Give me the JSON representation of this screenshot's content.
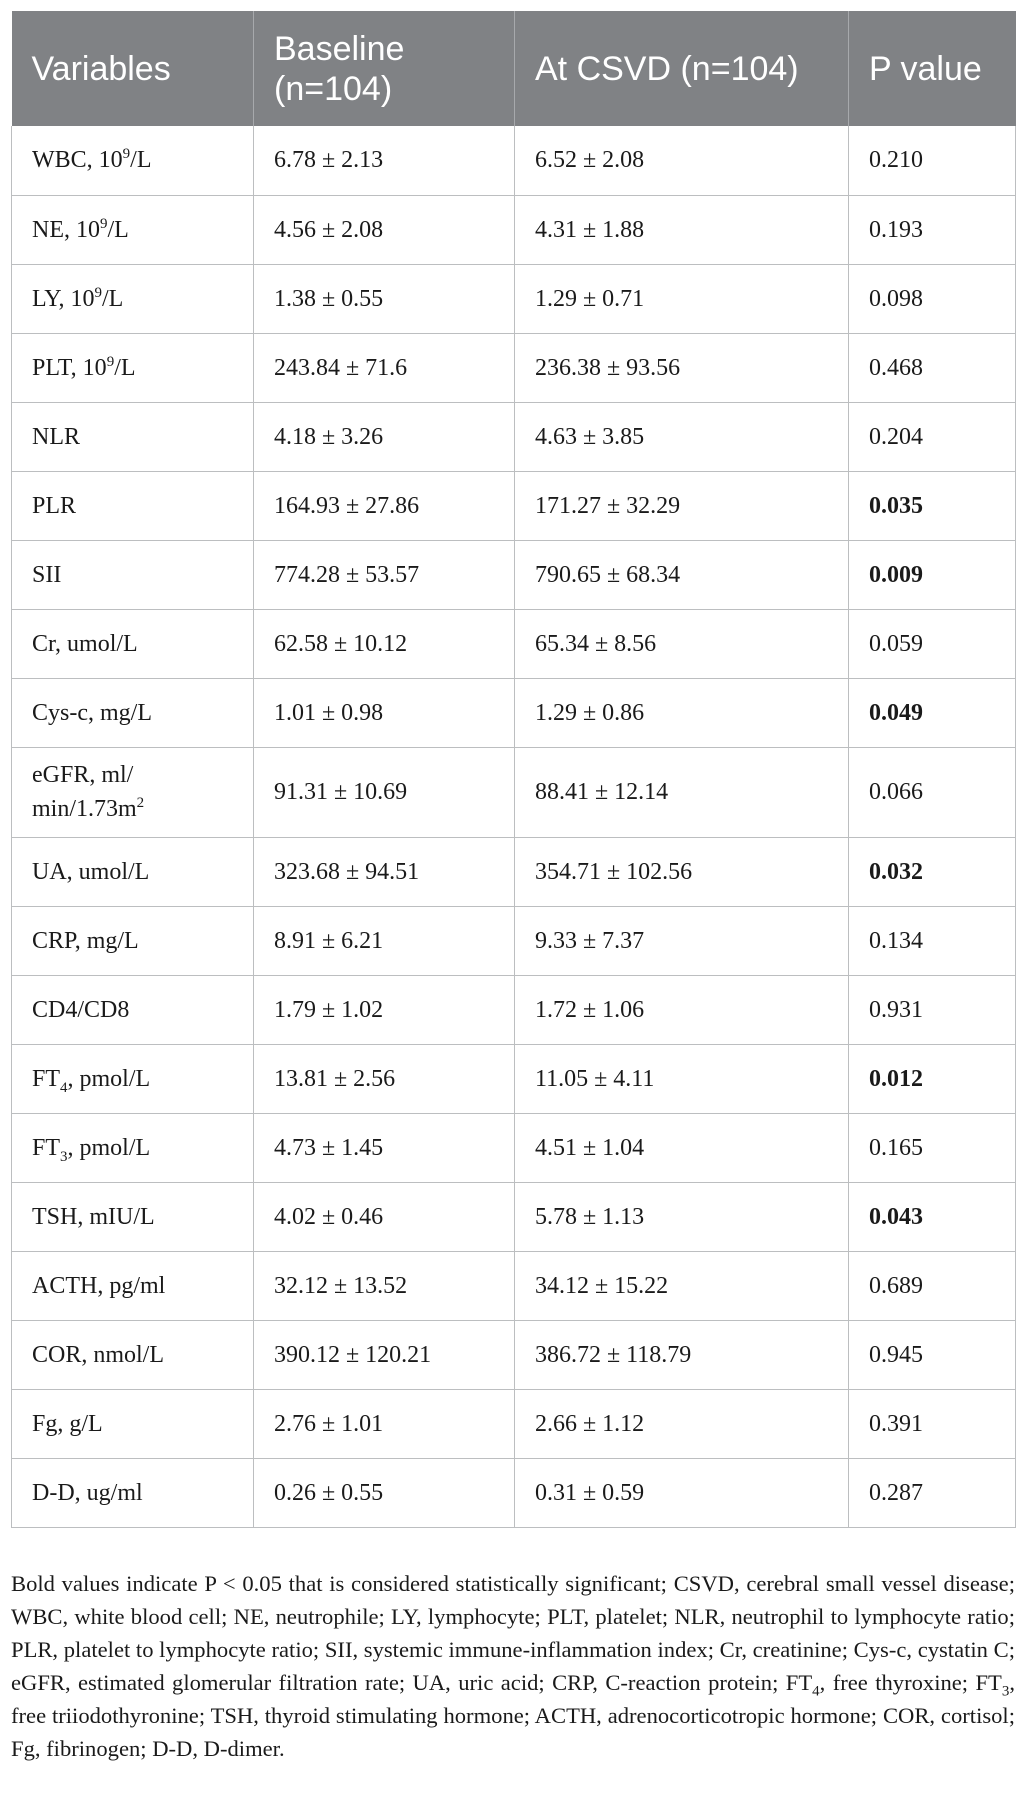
{
  "table": {
    "headers": {
      "variables": "Variables",
      "baseline_line1": "Baseline",
      "baseline_line2": "(n=104)",
      "at_csvd": "At CSVD (n=104)",
      "p_value": "P value"
    },
    "rows": [
      {
        "var": "WBC, 10",
        "sup": "9",
        "rest": "/L",
        "baseline": "6.78 ± 2.13",
        "csvd": "6.52 ± 2.08",
        "p": "0.210",
        "significant": false
      },
      {
        "var": "NE, 10",
        "sup": "9",
        "rest": "/L",
        "baseline": "4.56 ± 2.08",
        "csvd": "4.31 ± 1.88",
        "p": "0.193",
        "significant": false
      },
      {
        "var": "LY, 10",
        "sup": "9",
        "rest": "/L",
        "baseline": "1.38 ± 0.55",
        "csvd": "1.29 ± 0.71",
        "p": "0.098",
        "significant": false
      },
      {
        "var": "PLT, 10",
        "sup": "9",
        "rest": "/L",
        "baseline": "243.84 ± 71.6",
        "csvd": "236.38 ± 93.56",
        "p": "0.468",
        "significant": false
      },
      {
        "var": "NLR",
        "baseline": "4.18 ± 3.26",
        "csvd": "4.63 ± 3.85",
        "p": "0.204",
        "significant": false
      },
      {
        "var": "PLR",
        "baseline": "164.93 ± 27.86",
        "csvd": "171.27 ± 32.29",
        "p": "0.035",
        "significant": true
      },
      {
        "var": "SII",
        "baseline": "774.28 ± 53.57",
        "csvd": "790.65 ± 68.34",
        "p": "0.009",
        "significant": true
      },
      {
        "var": "Cr, umol/L",
        "baseline": "62.58 ± 10.12",
        "csvd": "65.34 ± 8.56",
        "p": "0.059",
        "significant": false
      },
      {
        "var": "Cys-c, mg/L",
        "baseline": "1.01 ± 0.98",
        "csvd": "1.29 ± 0.86",
        "p": "0.049",
        "significant": true
      },
      {
        "var": "eGFR, ml/",
        "line2": "min/1.73m",
        "sup": "2",
        "baseline": "91.31 ± 10.69",
        "csvd": "88.41 ± 12.14",
        "p": "0.066",
        "significant": false,
        "tall": true
      },
      {
        "var": "UA, umol/L",
        "baseline": "323.68 ± 94.51",
        "csvd": "354.71 ± 102.56",
        "p": "0.032",
        "significant": true
      },
      {
        "var": "CRP, mg/L",
        "baseline": "8.91 ± 6.21",
        "csvd": "9.33 ± 7.37",
        "p": "0.134",
        "significant": false
      },
      {
        "var": "CD4/CD8",
        "baseline": "1.79 ± 1.02",
        "csvd": "1.72 ± 1.06",
        "p": "0.931",
        "significant": false
      },
      {
        "var": "FT",
        "sub": "4",
        "rest": ", pmol/L",
        "baseline": "13.81 ± 2.56",
        "csvd": "11.05 ± 4.11",
        "p": "0.012",
        "significant": true
      },
      {
        "var": "FT",
        "sub": "3",
        "rest": ", pmol/L",
        "baseline": "4.73 ± 1.45",
        "csvd": "4.51 ± 1.04",
        "p": "0.165",
        "significant": false
      },
      {
        "var": "TSH, mIU/L",
        "baseline": "4.02 ± 0.46",
        "csvd": "5.78 ± 1.13",
        "p": "0.043",
        "significant": true
      },
      {
        "var": "ACTH, pg/ml",
        "baseline": "32.12 ± 13.52",
        "csvd": "34.12 ± 15.22",
        "p": "0.689",
        "significant": false
      },
      {
        "var": "COR, nmol/L",
        "baseline": "390.12 ± 120.21",
        "csvd": "386.72 ± 118.79",
        "p": "0.945",
        "significant": false
      },
      {
        "var": "Fg, g/L",
        "baseline": "2.76 ± 1.01",
        "csvd": "2.66 ± 1.12",
        "p": "0.391",
        "significant": false
      },
      {
        "var": "D-D, ug/ml",
        "baseline": "0.26 ± 0.55",
        "csvd": "0.31 ± 0.59",
        "p": "0.287",
        "significant": false
      }
    ]
  },
  "footnote": {
    "part1": "Bold values indicate P < 0.05 that is considered statistically significant; CSVD, cerebral small vessel disease; WBC, white blood cell; NE, neutrophile; LY, lymphocyte; PLT, platelet; NLR, neutrophil to lymphocyte ratio; PLR, platelet to lymphocyte ratio; SII, systemic immune-inflammation index; Cr, creatinine; Cys-c, cystatin C; eGFR, estimated glomerular filtration rate; UA, uric acid; CRP, C-reaction protein; FT",
    "sub1": "4",
    "part2": ", free thyroxine; FT",
    "sub2": "3",
    "part3": ", free triiodothyronine; TSH, thyroid stimulating hormone; ACTH, adrenocorticotropic hormone; COR, cortisol; Fg, fibrinogen; D-D, D-dimer."
  },
  "colors": {
    "header_bg": "#808285",
    "header_text": "#ffffff",
    "grid_line": "#bcbec0"
  }
}
